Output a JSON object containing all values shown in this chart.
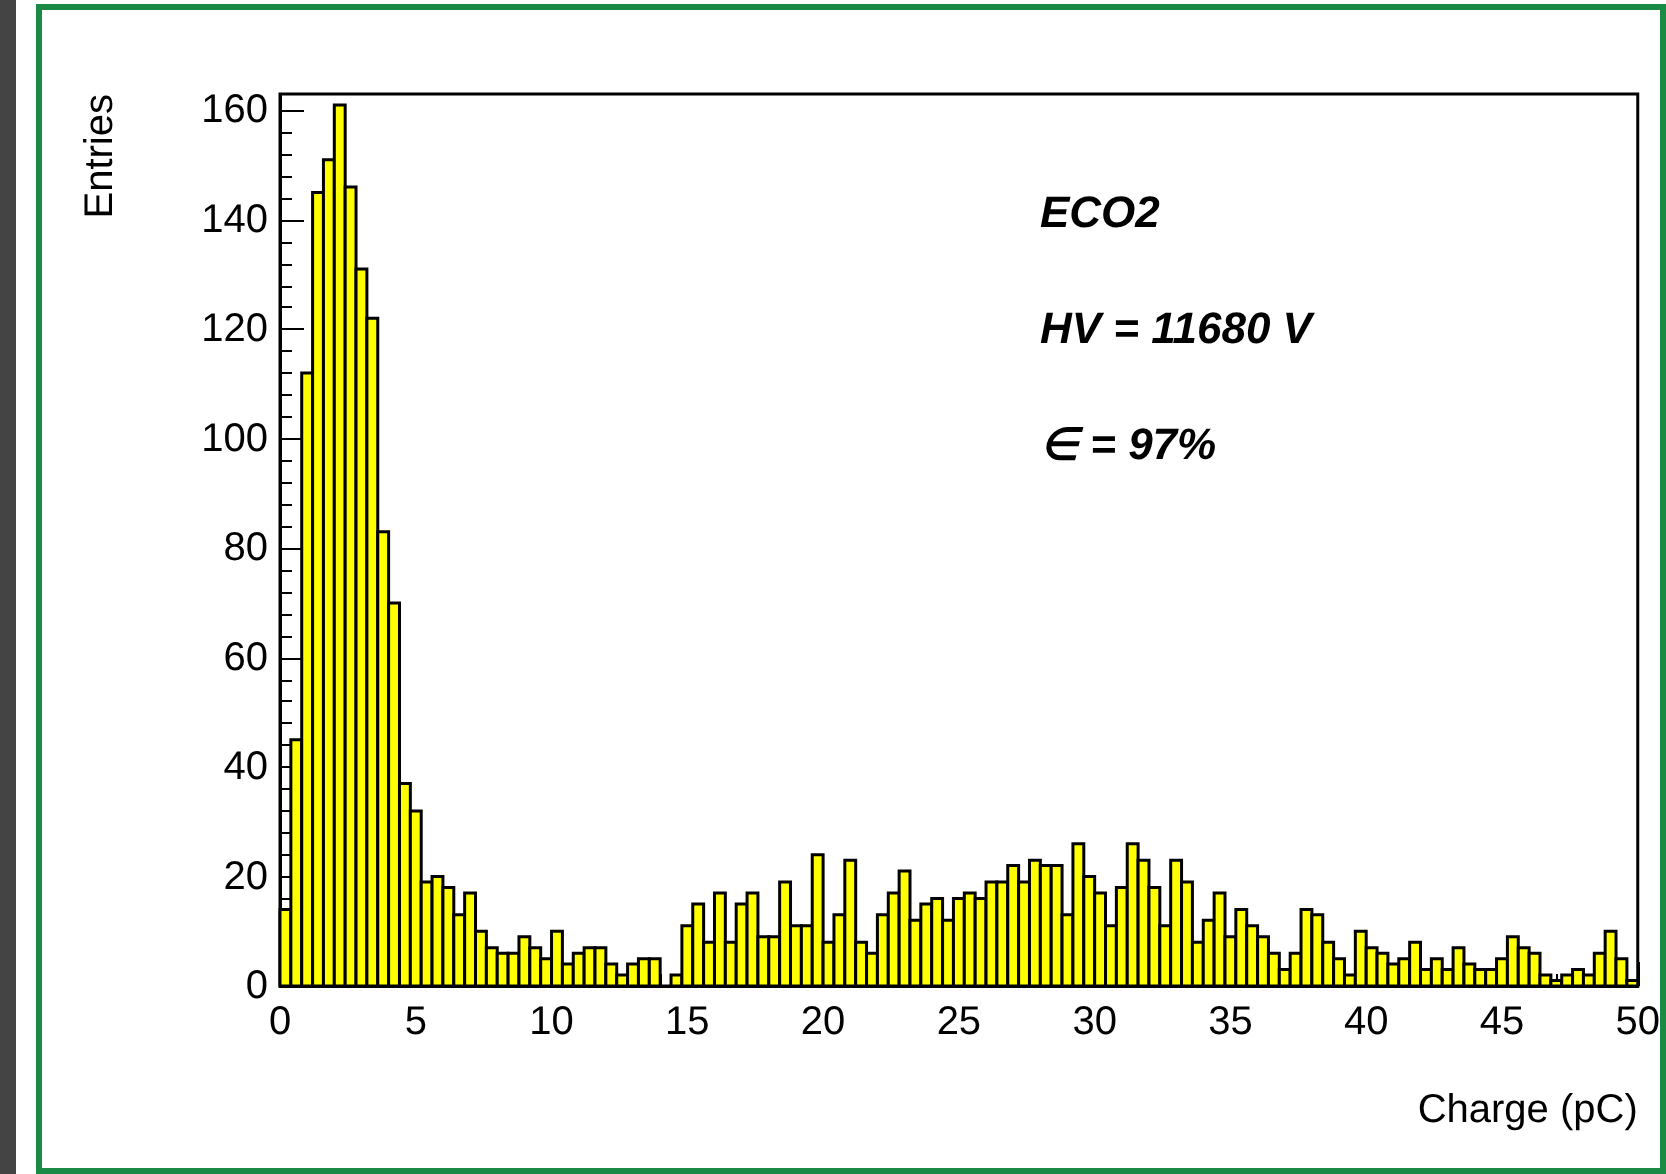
{
  "chart_data": {
    "type": "histogram",
    "xlabel": "Charge (pC)",
    "ylabel": "Entries",
    "annotations": [
      "ECO2",
      "HV = 11680 V",
      "∈ = 97%"
    ],
    "bins": [
      0,
      0.4,
      0.8,
      1.2,
      1.6,
      2,
      2.4,
      2.8,
      3.2,
      3.6,
      4,
      4.4,
      4.8,
      5.2,
      5.6,
      6,
      6.4,
      6.8,
      7.2,
      7.6,
      8,
      8.4,
      8.8,
      9.2,
      9.6,
      10,
      10.4,
      10.8,
      11.2,
      11.6,
      12,
      12.4,
      12.8,
      13.2,
      13.6,
      14,
      14.4,
      14.8,
      15.2,
      15.6,
      16,
      16.4,
      16.8,
      17.2,
      17.6,
      18,
      18.4,
      18.8,
      19.2,
      19.6,
      20,
      20.4,
      20.8,
      21.2,
      21.6,
      22,
      22.4,
      22.8,
      23.2,
      23.6,
      24,
      24.4,
      24.8,
      25.2,
      25.6,
      26,
      26.4,
      26.8,
      27.2,
      27.6,
      28,
      28.4,
      28.8,
      29.2,
      29.6,
      30,
      30.4,
      30.8,
      31.2,
      31.6,
      32,
      32.4,
      32.8,
      33.2,
      33.6,
      34,
      34.4,
      34.8,
      35.2,
      35.6,
      36,
      36.4,
      36.8,
      37.2,
      37.6,
      38,
      38.4,
      38.8,
      39.2,
      39.6,
      40,
      40.4,
      40.8,
      41.2,
      41.6,
      42,
      42.4,
      42.8,
      43.2,
      43.6,
      44,
      44.4,
      44.8,
      45.2,
      45.6,
      46,
      46.4,
      46.8,
      47.2,
      47.6,
      48,
      48.4,
      48.8,
      49.2,
      49.6,
      50
    ],
    "values": [
      14,
      45,
      112,
      145,
      151,
      161,
      146,
      131,
      122,
      83,
      70,
      37,
      32,
      19,
      20,
      18,
      13,
      17,
      10,
      7,
      6,
      6,
      9,
      7,
      5,
      10,
      4,
      6,
      7,
      7,
      4,
      2,
      4,
      5,
      5,
      0,
      2,
      11,
      15,
      8,
      17,
      8,
      15,
      17,
      9,
      9,
      19,
      11,
      11,
      24,
      8,
      13,
      23,
      8,
      6,
      13,
      17,
      21,
      12,
      15,
      16,
      12,
      16,
      17,
      16,
      19,
      19,
      22,
      19,
      23,
      22,
      22,
      13,
      26,
      20,
      17,
      11,
      18,
      26,
      23,
      18,
      11,
      23,
      19,
      8,
      12,
      17,
      9,
      14,
      11,
      9,
      6,
      3,
      6,
      14,
      13,
      8,
      5,
      2,
      10,
      7,
      6,
      4,
      5,
      8,
      3,
      5,
      3,
      7,
      4,
      3,
      3,
      5,
      9,
      7,
      6,
      2,
      1,
      2,
      3,
      2,
      6,
      10,
      5,
      1
    ],
    "color": "#ffff00",
    "xlim": [
      0,
      50
    ],
    "xticks": [
      0,
      5,
      10,
      15,
      20,
      25,
      30,
      35,
      40,
      45,
      50
    ],
    "ylim": [
      0,
      163
    ],
    "yticks": [
      0,
      20,
      40,
      60,
      80,
      100,
      120,
      140,
      160
    ],
    "grid": false
  }
}
